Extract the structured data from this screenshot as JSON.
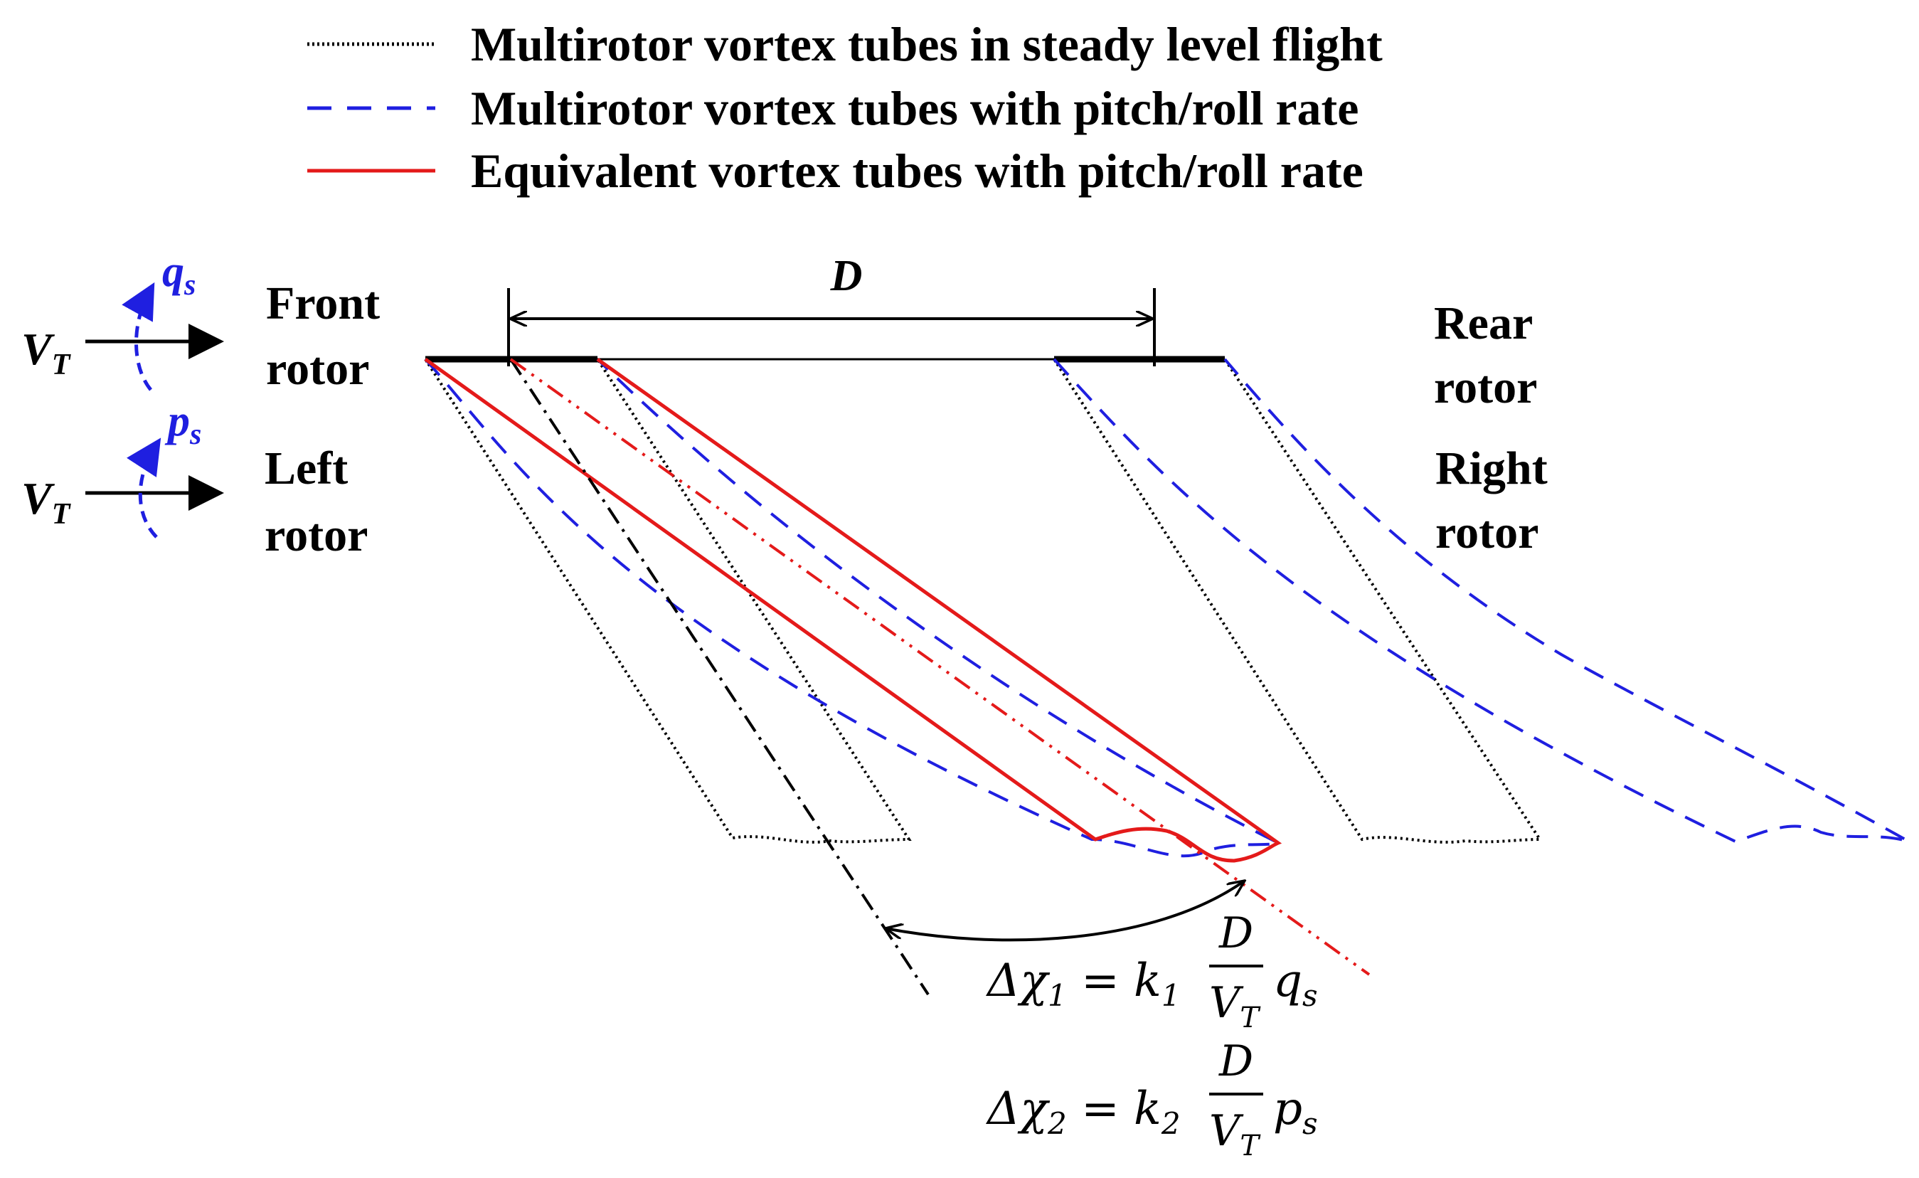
{
  "colors": {
    "steady": "#000000",
    "rate": "#1f1fe0",
    "equivalent": "#e41a1a",
    "rate_symbol": "#1f1fe0"
  },
  "legend": [
    {
      "style": "dotted",
      "label": "Multirotor vortex tubes in steady level flight"
    },
    {
      "style": "dashed",
      "label": "Multirotor vortex tubes with pitch/roll rate"
    },
    {
      "style": "solid",
      "label": "Equivalent vortex tubes with pitch/roll rate"
    }
  ],
  "labels": {
    "front_rotor": [
      "Front",
      "rotor"
    ],
    "left_rotor": [
      "Left",
      "rotor"
    ],
    "rear_rotor": [
      "Rear",
      "rotor"
    ],
    "right_rotor": [
      "Right",
      "rotor"
    ],
    "diameter": "D",
    "velocity": "V",
    "velocity_sub": "T",
    "pitch_rate": "q",
    "pitch_rate_sub": "s",
    "roll_rate": "p",
    "roll_rate_sub": "s"
  },
  "equations": [
    {
      "lhs": "Δχ",
      "lhs_sub": "1",
      "gain": "k",
      "gain_sub": "1",
      "num": "D",
      "den": "V",
      "den_sub": "T",
      "rate": "q",
      "rate_sub": "s"
    },
    {
      "lhs": "Δχ",
      "lhs_sub": "2",
      "gain": "k",
      "gain_sub": "2",
      "num": "D",
      "den": "V",
      "den_sub": "T",
      "rate": "p",
      "rate_sub": "s"
    }
  ]
}
